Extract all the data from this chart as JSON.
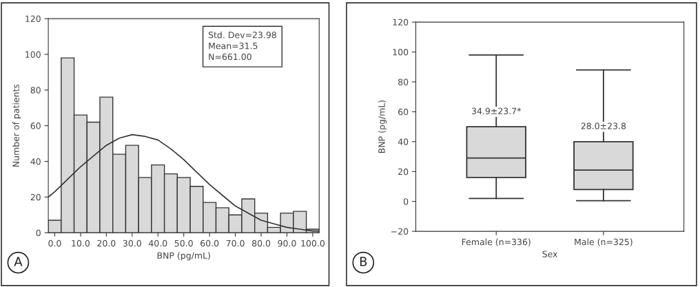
{
  "chart_data": [
    {
      "type": "histogram",
      "xlabel": "BNP (pg/mL)",
      "ylabel": "Number of patients",
      "bins": [
        -2.5,
        2.5,
        7.5,
        12.5,
        17.5,
        22.5,
        27.5,
        32.5,
        37.5,
        42.5,
        47.5,
        52.5,
        57.5,
        62.5,
        67.5,
        72.5,
        77.5,
        82.5,
        87.5,
        92.5,
        97.5,
        102.5
      ],
      "values": [
        7,
        98,
        66,
        62,
        76,
        44,
        49,
        31,
        38,
        33,
        31,
        26,
        17,
        14,
        10,
        19,
        11,
        3,
        11,
        12,
        2
      ],
      "color": "#d9d9d9",
      "series": [
        {
          "type": "line",
          "color": "#333333",
          "x": [
            -2.5,
            0,
            5,
            10,
            15,
            20,
            25,
            30,
            35,
            40,
            45,
            50,
            55,
            60,
            65,
            70,
            75,
            80,
            85,
            90,
            95,
            100,
            102.5
          ],
          "values": [
            20,
            23,
            30,
            37,
            43,
            49,
            53,
            55,
            54,
            52,
            47,
            41,
            34,
            27,
            21,
            15,
            11,
            7,
            5,
            3,
            2,
            1,
            1
          ]
        }
      ],
      "xlim": [
        -2.5,
        102.5
      ],
      "xticks": [
        {
          "value": 0,
          "label": "0.0"
        },
        {
          "value": 10,
          "label": "10.0"
        },
        {
          "value": 20,
          "label": "20.0"
        },
        {
          "value": 30,
          "label": "30.0"
        },
        {
          "value": 40,
          "label": "40.0"
        },
        {
          "value": 50,
          "label": "50.0"
        },
        {
          "value": 60,
          "label": "60.0"
        },
        {
          "value": 70,
          "label": "70.0"
        },
        {
          "value": 80,
          "label": "80.0"
        },
        {
          "value": 90,
          "label": "90.0"
        },
        {
          "value": 100,
          "label": "100.0"
        }
      ],
      "ylim": [
        0,
        120
      ],
      "yticks": [
        0,
        20,
        40,
        60,
        80,
        100,
        120
      ],
      "annotations": [
        "Std. Dev=23.98\nMean=31.5\nN=661.00",
        "A"
      ]
    },
    {
      "type": "box",
      "xlabel": "Sex",
      "ylabel": "BNP (pg/mL)",
      "categories": [
        "Female (n=336)",
        "Male (n=325)"
      ],
      "color": "#d9d9d9",
      "boxes": [
        {
          "low": 2,
          "q1": 16,
          "median": 29,
          "q3": 50,
          "high": 98
        },
        {
          "low": 0.5,
          "q1": 8,
          "median": 21,
          "q3": 40,
          "high": 88
        }
      ],
      "ylim": [
        -20,
        120
      ],
      "yticks": [
        {
          "value": -20,
          "label": "−20"
        },
        0,
        20,
        40,
        60,
        80,
        100,
        120
      ],
      "annotations": [
        {
          "text": "34.9±23.7*",
          "x": "Female (n=336)",
          "y": 60
        },
        {
          "text": "28.0±23.8",
          "x": "Male (n=325)",
          "y": 50
        },
        "B"
      ]
    }
  ]
}
